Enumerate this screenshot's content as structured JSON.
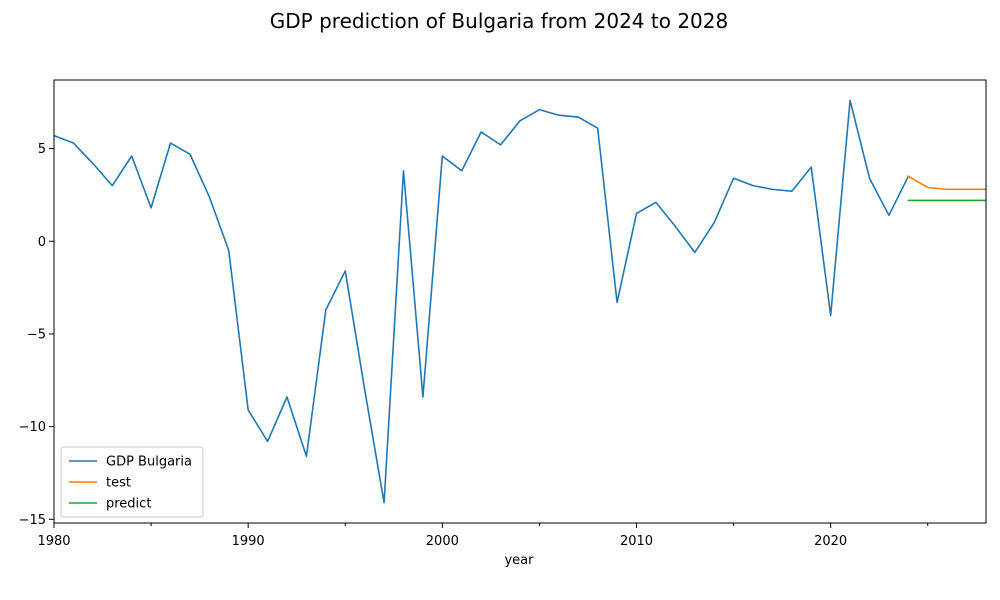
{
  "chart_data": {
    "type": "line",
    "title": "GDP prediction of Bulgaria from 2024 to 2028",
    "xlabel": "year",
    "ylabel": "",
    "xlim": [
      1980,
      2028
    ],
    "ylim": [
      -15.2,
      8.7
    ],
    "x_ticks": [
      1980,
      1990,
      2000,
      2010,
      2020
    ],
    "x_minor_ticks": [
      1985,
      1995,
      2005,
      2015,
      2025
    ],
    "y_ticks": [
      -15,
      -10,
      -5,
      0,
      5
    ],
    "grid": false,
    "legend_position": "lower-left",
    "series": [
      {
        "name": "GDP Bulgaria",
        "color": "#1f77b4",
        "x": [
          1980,
          1981,
          1982,
          1983,
          1984,
          1985,
          1986,
          1987,
          1988,
          1989,
          1990,
          1991,
          1992,
          1993,
          1994,
          1995,
          1996,
          1997,
          1998,
          1999,
          2000,
          2001,
          2002,
          2003,
          2004,
          2005,
          2006,
          2007,
          2008,
          2009,
          2010,
          2011,
          2012,
          2013,
          2014,
          2015,
          2016,
          2017,
          2018,
          2019,
          2020,
          2021,
          2022,
          2023,
          2024
        ],
        "y": [
          5.7,
          5.3,
          4.2,
          3.0,
          4.6,
          1.8,
          5.3,
          4.7,
          2.4,
          -0.5,
          -9.1,
          -10.8,
          -8.4,
          -11.6,
          -3.7,
          -1.6,
          -8.0,
          -14.1,
          3.8,
          -8.4,
          4.6,
          3.8,
          5.9,
          5.2,
          6.5,
          7.1,
          6.8,
          6.7,
          6.1,
          -3.3,
          1.5,
          2.1,
          0.8,
          -0.6,
          1.0,
          3.4,
          3.0,
          2.8,
          2.7,
          4.0,
          -4.0,
          7.6,
          3.4,
          1.4,
          3.5
        ]
      },
      {
        "name": "test",
        "color": "#ff7f0e",
        "x": [
          2024,
          2025,
          2026,
          2027,
          2028
        ],
        "y": [
          3.5,
          2.9,
          2.8,
          2.8,
          2.8
        ]
      },
      {
        "name": "predict",
        "color": "#2ca02c",
        "x": [
          2024,
          2025,
          2026,
          2027,
          2028
        ],
        "y": [
          2.2,
          2.2,
          2.2,
          2.2,
          2.2
        ]
      }
    ]
  }
}
